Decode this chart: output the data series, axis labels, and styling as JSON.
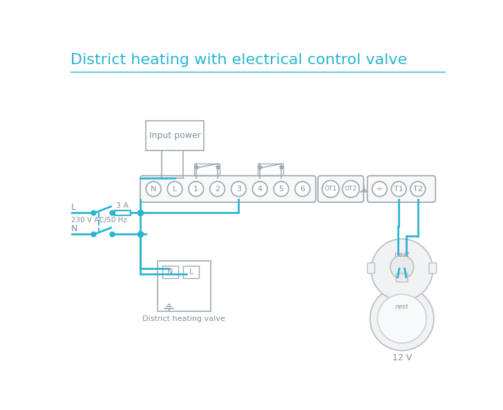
{
  "title": "District heating with electrical control valve",
  "title_color": "#2ab4d0",
  "title_fontsize": 16,
  "bg_color": "#ffffff",
  "wire_color": "#2ab4d0",
  "gray_color": "#a0aab0",
  "dark_gray": "#8090a0",
  "label_color": "#8090a0",
  "terminal_labels": [
    "N",
    "L",
    "1",
    "2",
    "3",
    "4",
    "5",
    "6"
  ],
  "ot_labels": [
    "OT1",
    "OT2"
  ],
  "t_labels": [
    "T1",
    "T2"
  ],
  "note_district": "District heating valve",
  "note_12v": "12 V",
  "note_3a": "3 A",
  "note_voltage": "230 V AC/50 Hz",
  "note_L": "L",
  "note_N": "N",
  "note_input_power": "Input power"
}
